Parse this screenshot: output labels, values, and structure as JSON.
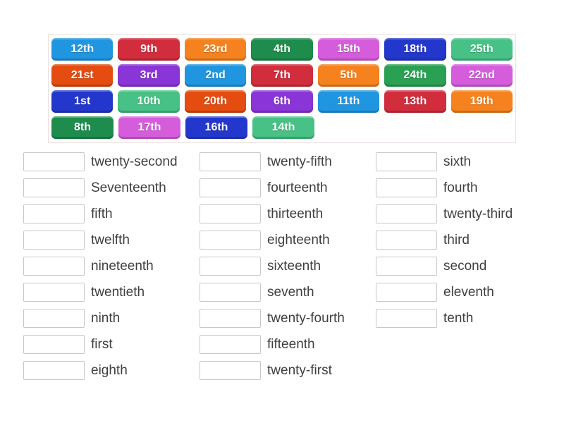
{
  "palette": {
    "blue": "#2196e0",
    "crimson": "#d22d3d",
    "orange": "#f5821e",
    "forest": "#1e8c4c",
    "orchid": "#d55ddc",
    "royal": "#2337cc",
    "seagreen": "#47c185",
    "orangered": "#e54c10",
    "purple": "#8a35d8",
    "green": "#2aa152"
  },
  "bank": {
    "rows": [
      [
        {
          "label": "12th",
          "color": "blue"
        },
        {
          "label": "9th",
          "color": "crimson"
        },
        {
          "label": "23rd",
          "color": "orange"
        },
        {
          "label": "4th",
          "color": "forest"
        },
        {
          "label": "15th",
          "color": "orchid"
        },
        {
          "label": "18th",
          "color": "royal"
        },
        {
          "label": "25th",
          "color": "seagreen"
        }
      ],
      [
        {
          "label": "21st",
          "color": "orangered"
        },
        {
          "label": "3rd",
          "color": "purple"
        },
        {
          "label": "2nd",
          "color": "blue"
        },
        {
          "label": "7th",
          "color": "crimson"
        },
        {
          "label": "5th",
          "color": "orange"
        },
        {
          "label": "24th",
          "color": "green"
        },
        {
          "label": "22nd",
          "color": "orchid"
        }
      ],
      [
        {
          "label": "1st",
          "color": "royal"
        },
        {
          "label": "10th",
          "color": "seagreen"
        },
        {
          "label": "20th",
          "color": "orangered"
        },
        {
          "label": "6th",
          "color": "purple"
        },
        {
          "label": "11th",
          "color": "blue"
        },
        {
          "label": "13th",
          "color": "crimson"
        },
        {
          "label": "19th",
          "color": "orange"
        }
      ],
      [
        {
          "label": "8th",
          "color": "forest"
        },
        {
          "label": "17th",
          "color": "orchid"
        },
        {
          "label": "16th",
          "color": "royal"
        },
        {
          "label": "14th",
          "color": "seagreen"
        }
      ]
    ]
  },
  "match_list": {
    "columns": [
      {
        "items": [
          "twenty-second",
          "Seventeenth",
          "fifth",
          "twelfth",
          "nineteenth",
          "twentieth",
          "ninth",
          "first",
          "eighth"
        ]
      },
      {
        "items": [
          "twenty-fifth",
          "fourteenth",
          "thirteenth",
          "eighteenth",
          "sixteenth",
          "seventh",
          "twenty-fourth",
          "fifteenth",
          "twenty-first"
        ]
      },
      {
        "items": [
          "sixth",
          "fourth",
          "twenty-third",
          "third",
          "second",
          "eleventh",
          "tenth"
        ]
      }
    ]
  }
}
